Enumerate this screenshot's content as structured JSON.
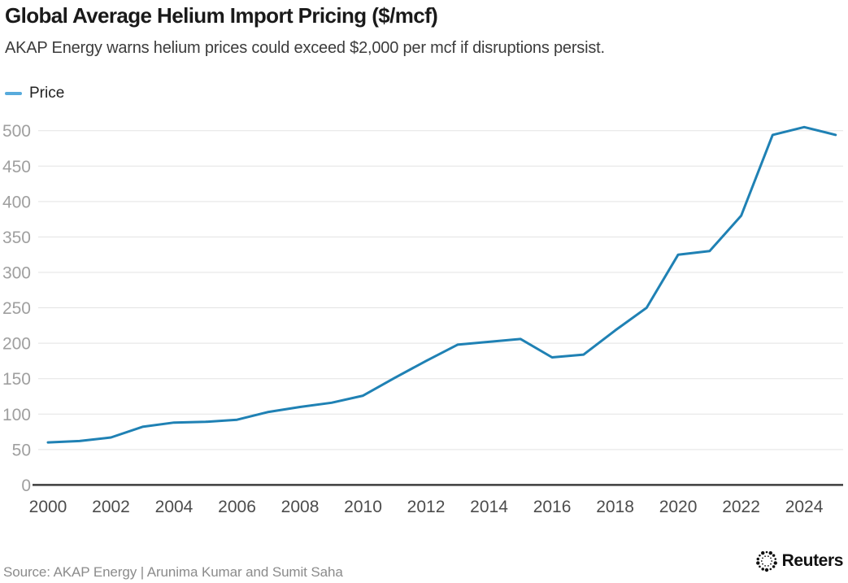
{
  "header": {
    "title": "Global Average Helium Import Pricing ($/mcf)",
    "subtitle": "AKAP Energy warns helium prices could exceed $2,000 per mcf if disruptions persist."
  },
  "legend": {
    "items": [
      {
        "label": "Price",
        "color": "#58abdc"
      }
    ]
  },
  "chart_data": {
    "type": "line",
    "title": "Global Average Helium Import Pricing ($/mcf)",
    "xlabel": "",
    "ylabel": "",
    "x": [
      2000,
      2001,
      2002,
      2003,
      2004,
      2005,
      2006,
      2007,
      2008,
      2009,
      2010,
      2011,
      2012,
      2013,
      2014,
      2015,
      2016,
      2017,
      2018,
      2019,
      2020,
      2021,
      2022,
      2023,
      2024,
      2025
    ],
    "series": [
      {
        "name": "Price",
        "color": "#1f81b4",
        "values": [
          60,
          62,
          67,
          82,
          88,
          89,
          92,
          103,
          110,
          116,
          126,
          151,
          175,
          198,
          202,
          206,
          180,
          184,
          218,
          250,
          325,
          330,
          380,
          494,
          505,
          494
        ]
      }
    ],
    "xticks": [
      2000,
      2002,
      2004,
      2006,
      2008,
      2010,
      2012,
      2014,
      2016,
      2018,
      2020,
      2022,
      2024
    ],
    "yticks": [
      0,
      50,
      100,
      150,
      200,
      250,
      300,
      350,
      400,
      450,
      500
    ],
    "xlim": [
      2000,
      2025
    ],
    "ylim": [
      0,
      500
    ],
    "grid": "horizontal-only",
    "legend_position": "top-left"
  },
  "footer": {
    "source": "Source: AKAP Energy | Arunima Kumar and Sumit Saha",
    "brand": "Reuters"
  },
  "colors": {
    "line": "#1f81b4",
    "legend_marker": "#58abdc",
    "title_text": "#1a1a1a",
    "subtitle_text": "#3c3c3c",
    "grid": "#e3e3e3",
    "axis": "#3d3d3d",
    "ytick_text": "#9f9f9f",
    "xtick_text": "#4c4c4c",
    "source_text": "#8b8b8b",
    "brand_text": "#111111"
  }
}
